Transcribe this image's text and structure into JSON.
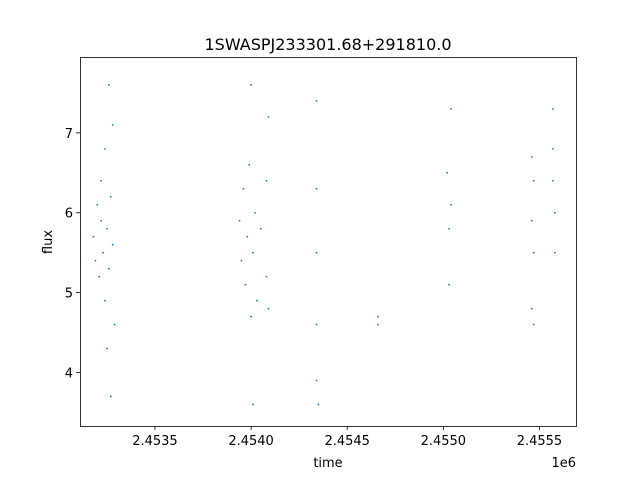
{
  "chart_data": {
    "type": "scatter",
    "title": "1SWASPJ233301.68+291810.0",
    "xlabel": "time",
    "ylabel": "flux",
    "x_offset_label": "1e6",
    "x_ticks": [
      2.4535,
      2.454,
      2.4545,
      2.455,
      2.4555
    ],
    "x_tick_labels": [
      "2.4535",
      "2.4540",
      "2.4545",
      "2.4550",
      "2.4555"
    ],
    "y_ticks": [
      4,
      5,
      6,
      7
    ],
    "y_tick_labels": [
      "4",
      "5",
      "6",
      "7"
    ],
    "xlim": [
      2.45311,
      2.45569
    ],
    "ylim": [
      3.33,
      7.95
    ],
    "grid": false,
    "legend": "none",
    "marker_color": "#1f77b4",
    "series": [
      {
        "points": [
          [
            2.45318,
            5.7
          ],
          [
            2.45319,
            5.4
          ],
          [
            2.4532,
            6.1
          ],
          [
            2.45321,
            5.2
          ],
          [
            2.45322,
            5.9
          ],
          [
            2.45322,
            6.4
          ],
          [
            2.45323,
            5.5
          ],
          [
            2.45324,
            4.9
          ],
          [
            2.45324,
            6.8
          ],
          [
            2.45325,
            5.8
          ],
          [
            2.45325,
            4.3
          ],
          [
            2.45326,
            7.6
          ],
          [
            2.45326,
            5.3
          ],
          [
            2.45327,
            6.2
          ],
          [
            2.45327,
            3.7
          ],
          [
            2.45328,
            5.6
          ],
          [
            2.45328,
            7.1
          ],
          [
            2.45329,
            4.6
          ],
          [
            2.45394,
            5.9
          ],
          [
            2.45395,
            5.4
          ],
          [
            2.45396,
            6.3
          ],
          [
            2.45397,
            5.1
          ],
          [
            2.45398,
            5.7
          ],
          [
            2.45399,
            6.6
          ],
          [
            2.454,
            4.7
          ],
          [
            2.454,
            7.6
          ],
          [
            2.45401,
            5.5
          ],
          [
            2.45401,
            3.6
          ],
          [
            2.45402,
            6.0
          ],
          [
            2.45403,
            4.9
          ],
          [
            2.45405,
            5.8
          ],
          [
            2.45408,
            6.4
          ],
          [
            2.45408,
            5.2
          ],
          [
            2.45409,
            7.2
          ],
          [
            2.45409,
            4.8
          ],
          [
            2.45434,
            7.4
          ],
          [
            2.45434,
            6.3
          ],
          [
            2.45434,
            5.5
          ],
          [
            2.45434,
            4.6
          ],
          [
            2.45434,
            3.9
          ],
          [
            2.45435,
            3.6
          ],
          [
            2.45466,
            4.7
          ],
          [
            2.45466,
            4.6
          ],
          [
            2.45502,
            6.5
          ],
          [
            2.45503,
            5.8
          ],
          [
            2.45503,
            5.1
          ],
          [
            2.45504,
            7.3
          ],
          [
            2.45504,
            6.1
          ],
          [
            2.45546,
            6.7
          ],
          [
            2.45546,
            5.9
          ],
          [
            2.45546,
            4.8
          ],
          [
            2.45547,
            6.4
          ],
          [
            2.45547,
            4.6
          ],
          [
            2.45547,
            5.5
          ],
          [
            2.45557,
            7.3
          ],
          [
            2.45557,
            6.8
          ],
          [
            2.45557,
            6.4
          ],
          [
            2.45558,
            6.0
          ],
          [
            2.45558,
            5.5
          ]
        ]
      }
    ]
  }
}
